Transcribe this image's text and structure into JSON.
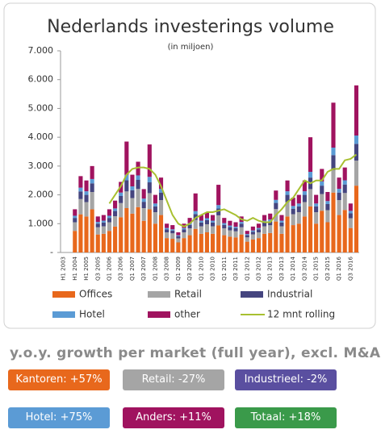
{
  "chart_data": {
    "type": "bar",
    "title": "Nederlands investerings volume",
    "subtitle": "(in miljoen)",
    "categories": [
      "H1 2003",
      null,
      "H1 2004",
      null,
      "H1 2005",
      null,
      "Q3 2005",
      null,
      "Q1 2006",
      null,
      "Q3 2006",
      null,
      "Q1 2007",
      null,
      "Q3 2007",
      null,
      "Q1 2008",
      null,
      "Q3 2008",
      null,
      "Q1 2009",
      null,
      "Q3 2009",
      null,
      "Q1 2010",
      null,
      "Q3 2010",
      null,
      "Q1 2011",
      null,
      "Q3 2011",
      null,
      "Q1 2012",
      null,
      "Q3 2012",
      null,
      "Q1 2013",
      null,
      "Q3 2013",
      null,
      "Q1 2014",
      null,
      "Q3 2014",
      null,
      "Q1 2015",
      null,
      "Q3 2015",
      null,
      "Q1 2016",
      null,
      "Q3 2016",
      null
    ],
    "stacked": true,
    "series": [
      {
        "name": "Offices",
        "color": "#e8681c",
        "values": [
          0,
          0,
          750,
          1325,
          1250,
          1500,
          625,
          650,
          750,
          900,
          1225,
          1540,
          1350,
          1575,
          1100,
          1500,
          1000,
          1300,
          500,
          475,
          350,
          500,
          600,
          820,
          650,
          700,
          650,
          940,
          600,
          550,
          525,
          625,
          375,
          450,
          500,
          650,
          675,
          1075,
          650,
          1250,
          950,
          1000,
          1250,
          1600,
          1000,
          1450,
          1050,
          2080,
          1300,
          1475,
          850,
          2320
        ]
      },
      {
        "name": "Retail",
        "color": "#a5a5a5",
        "values": [
          0,
          0,
          300,
          530,
          500,
          600,
          250,
          260,
          300,
          360,
          490,
          580,
          540,
          630,
          440,
          560,
          400,
          520,
          200,
          190,
          140,
          200,
          240,
          310,
          260,
          280,
          260,
          350,
          240,
          220,
          210,
          250,
          150,
          180,
          200,
          260,
          270,
          430,
          260,
          500,
          380,
          400,
          500,
          600,
          400,
          580,
          420,
          780,
          520,
          590,
          340,
          870
        ]
      },
      {
        "name": "Industrial",
        "color": "#45457f",
        "values": [
          0,
          0,
          150,
          265,
          250,
          300,
          125,
          130,
          150,
          180,
          245,
          385,
          270,
          315,
          220,
          375,
          200,
          260,
          100,
          95,
          70,
          100,
          120,
          205,
          130,
          140,
          130,
          235,
          120,
          110,
          105,
          125,
          75,
          90,
          100,
          130,
          135,
          215,
          130,
          250,
          190,
          200,
          250,
          400,
          200,
          290,
          210,
          520,
          260,
          295,
          170,
          580
        ]
      },
      {
        "name": "Hotel",
        "color": "#5b9bd5",
        "values": [
          0,
          0,
          75,
          130,
          125,
          150,
          60,
          65,
          75,
          90,
          120,
          190,
          135,
          155,
          110,
          190,
          100,
          130,
          50,
          45,
          35,
          50,
          60,
          100,
          65,
          70,
          65,
          120,
          60,
          55,
          50,
          60,
          40,
          45,
          50,
          65,
          65,
          105,
          65,
          125,
          95,
          100,
          125,
          200,
          100,
          145,
          105,
          260,
          130,
          145,
          85,
          290
        ]
      },
      {
        "name": "other",
        "color": "#a0135f",
        "values": [
          0,
          0,
          225,
          400,
          375,
          450,
          190,
          195,
          225,
          270,
          370,
          1155,
          405,
          475,
          330,
          1125,
          300,
          390,
          150,
          145,
          105,
          150,
          180,
          615,
          195,
          210,
          195,
          705,
          180,
          165,
          160,
          190,
          110,
          135,
          150,
          195,
          205,
          325,
          195,
          375,
          285,
          300,
          375,
          1200,
          300,
          435,
          315,
          1560,
          390,
          445,
          255,
          1740
        ]
      },
      {
        "name": "12 mnt rolling",
        "type": "line",
        "color": "#a8c030",
        "values": [
          null,
          null,
          null,
          null,
          null,
          null,
          null,
          null,
          1700,
          2000,
          2300,
          2700,
          2900,
          2950,
          2950,
          2900,
          2700,
          2300,
          1800,
          1300,
          1000,
          900,
          1000,
          1200,
          1300,
          1400,
          1400,
          1450,
          1500,
          1400,
          1300,
          1150,
          1100,
          1200,
          1100,
          1050,
          1050,
          1300,
          1500,
          1750,
          1900,
          2200,
          2500,
          2400,
          2500,
          2500,
          2800,
          2900,
          2900,
          3200,
          3250,
          3400
        ]
      }
    ],
    "ylim": [
      0,
      7000
    ],
    "yticks": [
      {
        "value": 0,
        "label": "-"
      },
      {
        "value": 1000,
        "label": "1.000"
      },
      {
        "value": 2000,
        "label": "2.000"
      },
      {
        "value": 3000,
        "label": "3.000"
      },
      {
        "value": 4000,
        "label": "4.000"
      },
      {
        "value": 5000,
        "label": "5.000"
      },
      {
        "value": 6000,
        "label": "6.000"
      },
      {
        "value": 7000,
        "label": "7.000"
      }
    ],
    "legend": "bottom"
  },
  "growth": {
    "title": "y.o.y. growth per market (full year), excl. M&A",
    "items": [
      {
        "label": "Kantoren: +57%",
        "color": "#e8681c"
      },
      {
        "label": "Retail: -27%",
        "color": "#a5a5a5"
      },
      {
        "label": "Industrieel: -2%",
        "color": "#5a4fa0"
      },
      {
        "label": "Hotel: +75%",
        "color": "#5b9bd5"
      },
      {
        "label": "Anders: +11%",
        "color": "#a0135f"
      },
      {
        "label": "Totaal: +18%",
        "color": "#3a9a4a"
      }
    ]
  }
}
